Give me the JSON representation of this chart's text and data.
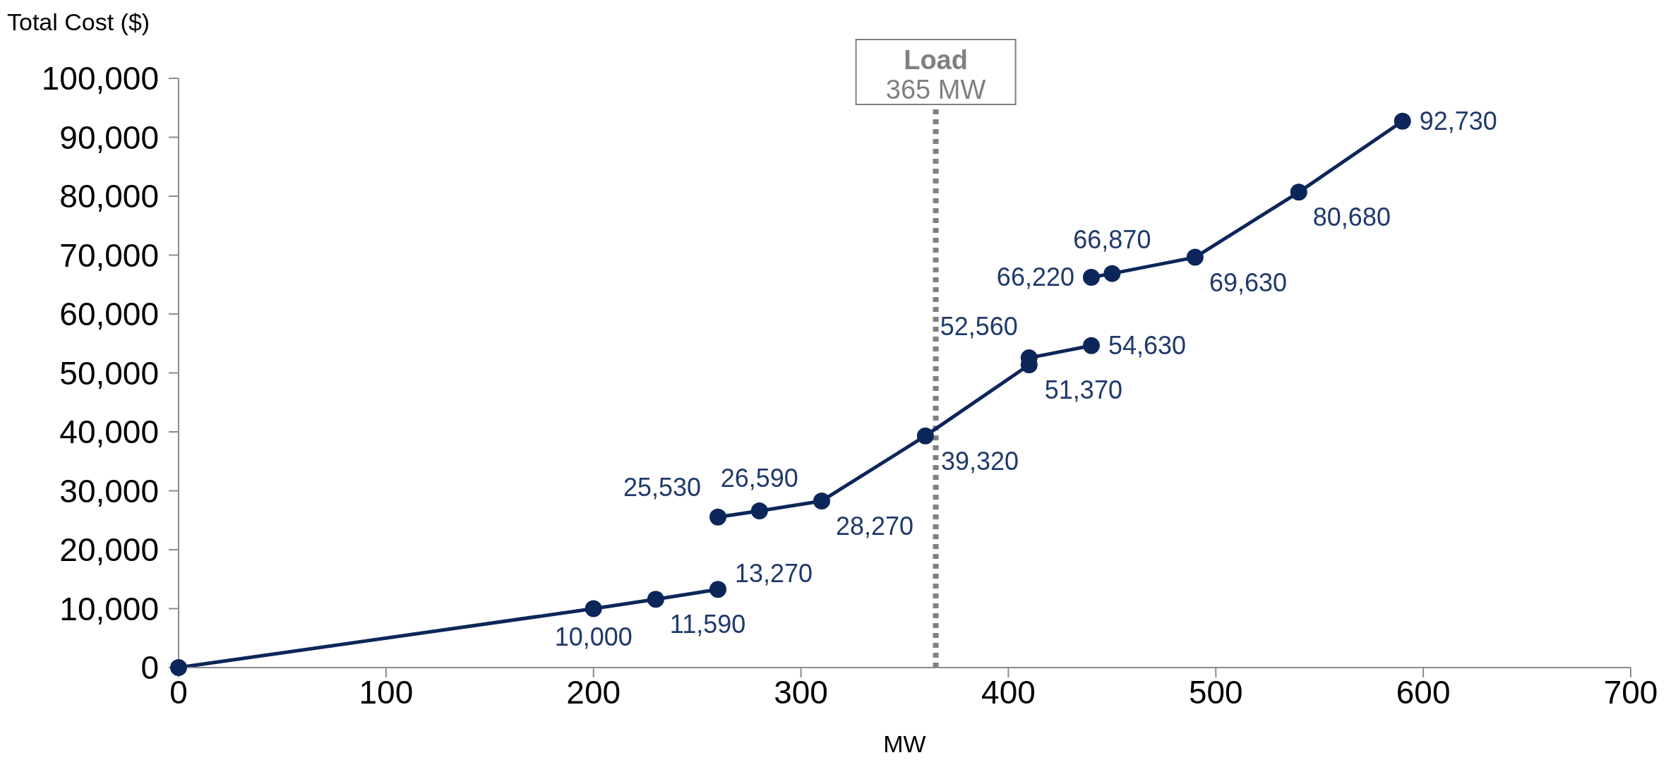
{
  "chart_data": {
    "type": "line",
    "xlabel": "MW",
    "ylabel": "Total Cost ($)",
    "series": [
      {
        "color": "#0c2659",
        "x": [
          0,
          200,
          230,
          260
        ],
        "values": [
          0,
          10000,
          11590,
          13270
        ],
        "value_labels": [
          null,
          "10,000",
          "11,590",
          "13,270"
        ]
      },
      {
        "color": "#0c2659",
        "x": [
          260,
          280,
          310,
          360,
          410,
          410,
          440
        ],
        "values": [
          25530,
          26590,
          28270,
          39320,
          51370,
          52560,
          54630
        ],
        "value_labels": [
          "25,530",
          "26,590",
          "28,270",
          "39,320",
          "51,370",
          "52,560",
          "54,630"
        ]
      },
      {
        "color": "#0c2659",
        "x": [
          440,
          450,
          490,
          540,
          590
        ],
        "values": [
          66220,
          66870,
          69630,
          80680,
          92730
        ],
        "value_labels": [
          "66,220",
          "66,870",
          "69,630",
          "80,680",
          "92,730"
        ]
      }
    ],
    "xlim": [
      0,
      700
    ],
    "xticks": [
      0,
      100,
      200,
      300,
      400,
      500,
      600,
      700
    ],
    "ylim": [
      0,
      100000
    ],
    "yticks": [
      {
        "value": 0,
        "label": "0"
      },
      {
        "value": 10000,
        "label": "10,000"
      },
      {
        "value": 20000,
        "label": "20,000"
      },
      {
        "value": 30000,
        "label": "30,000"
      },
      {
        "value": 40000,
        "label": "40,000"
      },
      {
        "value": 50000,
        "label": "50,000"
      },
      {
        "value": 60000,
        "label": "60,000"
      },
      {
        "value": 70000,
        "label": "70,000"
      },
      {
        "value": 80000,
        "label": "80,000"
      },
      {
        "value": 90000,
        "label": "90,000"
      },
      {
        "value": 100000,
        "label": "100,000"
      }
    ],
    "ref_lines": [
      {
        "axis": "x",
        "value": 365,
        "label": "Load\n365 MW",
        "color": "#808080",
        "line_style": "dotted"
      }
    ],
    "marker": "circle",
    "line_style": "solid",
    "grid": false,
    "legend": false
  }
}
